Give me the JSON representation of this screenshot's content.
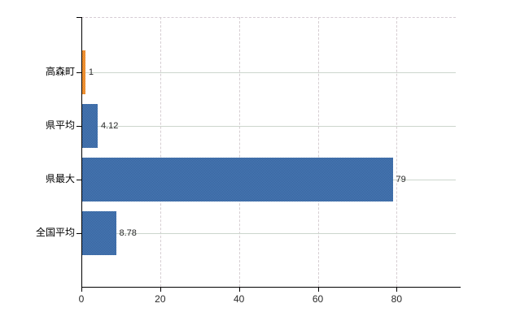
{
  "chart_data": {
    "type": "bar",
    "orientation": "horizontal",
    "title": "",
    "xlabel": "",
    "ylabel": "",
    "categories": [
      "高森町",
      "県平均",
      "県最大",
      "全国平均"
    ],
    "values": [
      1,
      4.12,
      79,
      8.78
    ],
    "bars": [
      {
        "category": "高森町",
        "value": 1,
        "label": "1",
        "fill_light": "#f39b45",
        "fill_dark": "#e5821c"
      },
      {
        "category": "県平均",
        "value": 4.12,
        "label": "4.12",
        "fill_light": "#4d7cb8",
        "fill_dark": "#33619b"
      },
      {
        "category": "県最大",
        "value": 79,
        "label": "79",
        "fill_light": "#4d7cb8",
        "fill_dark": "#33619b"
      },
      {
        "category": "全国平均",
        "value": 8.78,
        "label": "8.78",
        "fill_light": "#4d7cb8",
        "fill_dark": "#33619b"
      }
    ],
    "x_ticks": [
      0,
      20,
      40,
      60,
      80
    ],
    "xlim": [
      0,
      95
    ],
    "grid": true,
    "legend": false
  },
  "colors": {
    "bar_blue": "#3d6da9",
    "bar_orange": "#ec8e31",
    "axis": "#000000",
    "vertical_gridline": "#d6ced2",
    "horizontal_gridline": "#ccd6cd",
    "text": "#000000",
    "value_text": "#2a2a2a",
    "background": "#ffffff"
  }
}
